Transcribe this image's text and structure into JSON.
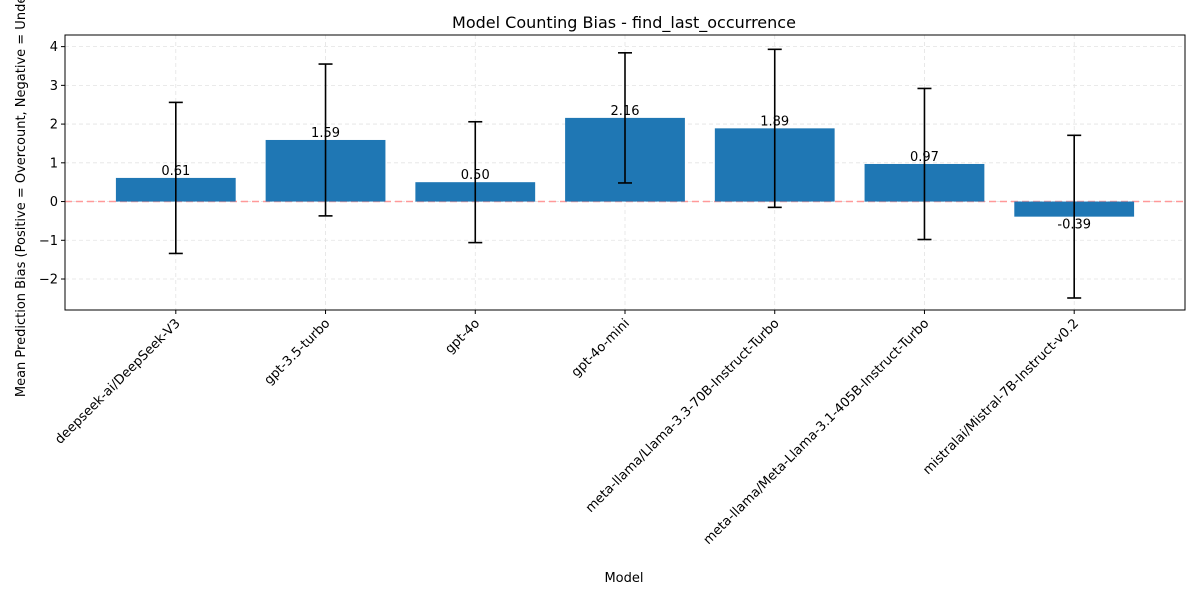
{
  "chart_data": {
    "type": "bar",
    "title": "Model Counting Bias - find_last_occurrence",
    "xlabel": "Model",
    "ylabel": "Mean Prediction Bias (Positive = Overcount, Negative = Undercount)",
    "categories": [
      "deepseek-ai/DeepSeek-V3",
      "gpt-3.5-turbo",
      "gpt-4o",
      "gpt-4o-mini",
      "meta-llama/Llama-3.3-70B-Instruct-Turbo",
      "meta-llama/Meta-Llama-3.1-405B-Instruct-Turbo",
      "mistralai/Mistral-7B-Instruct-v0.2"
    ],
    "values": [
      0.61,
      1.59,
      0.5,
      2.16,
      1.89,
      0.97,
      -0.39
    ],
    "value_labels": [
      "0.61",
      "1.59",
      "0.50",
      "2.16",
      "1.89",
      "0.97",
      "-0.39"
    ],
    "error_low": [
      -1.34,
      -0.37,
      -1.06,
      0.48,
      -0.15,
      -0.98,
      -2.49
    ],
    "error_high": [
      2.56,
      3.55,
      2.06,
      3.84,
      3.93,
      2.92,
      1.71
    ],
    "ylim": [
      -2.8,
      4.3
    ],
    "yticks": [
      -2,
      -1,
      0,
      1,
      2,
      3,
      4
    ],
    "ytick_labels": [
      "−2",
      "−1",
      "0",
      "1",
      "2",
      "3",
      "4"
    ],
    "reference_line": 0,
    "grid": true,
    "colors": {
      "bar": "#1f77b4",
      "error_bar": "#000000",
      "reference_line": "#ff9999",
      "grid": "#e3e3e3",
      "axis": "#000000"
    }
  }
}
